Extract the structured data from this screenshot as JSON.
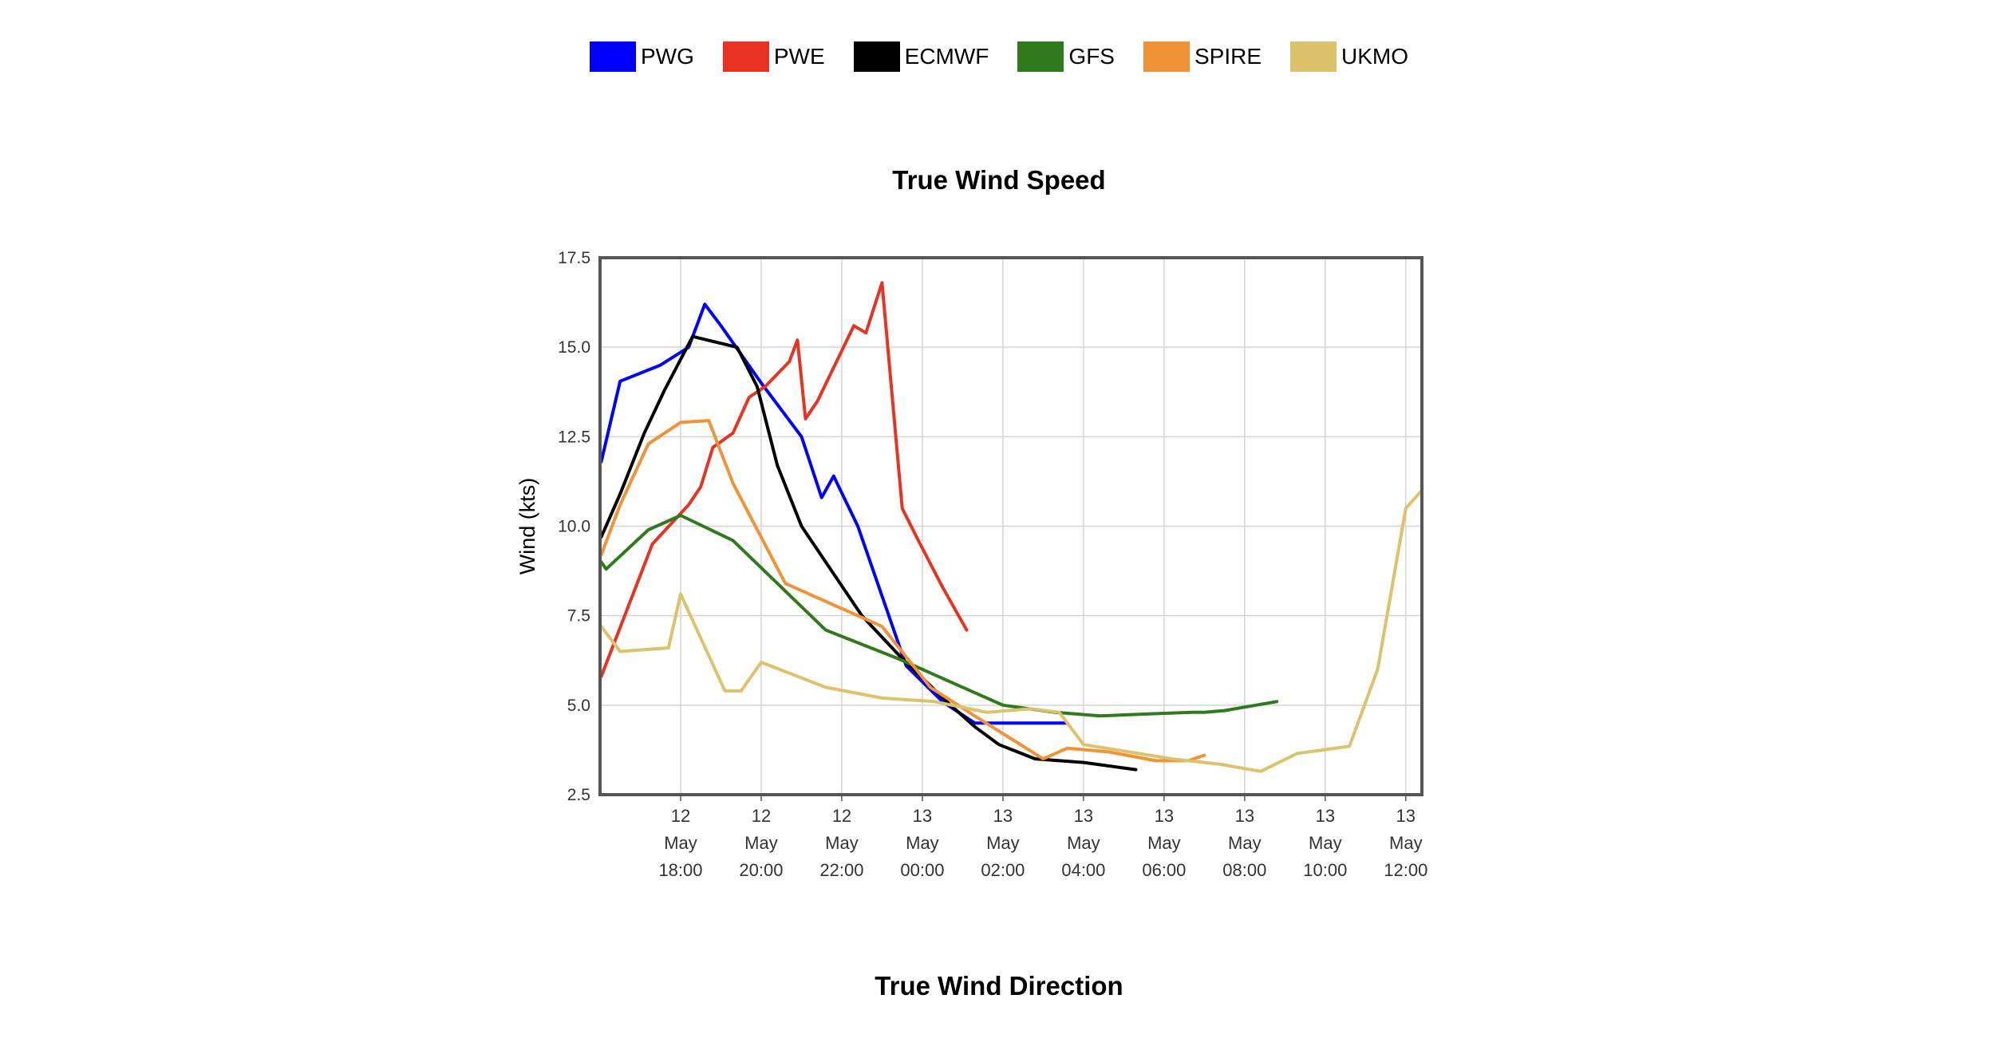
{
  "legend": [
    {
      "label": "PWG",
      "color": "#0000ff"
    },
    {
      "label": "PWE",
      "color": "#e83323"
    },
    {
      "label": "ECMWF",
      "color": "#000000"
    },
    {
      "label": "GFS",
      "color": "#2e7a1c"
    },
    {
      "label": "SPIRE",
      "color": "#f09336"
    },
    {
      "label": "UKMO",
      "color": "#dcc26a"
    }
  ],
  "titles": {
    "speed": "True Wind Speed",
    "direction": "True Wind Direction"
  },
  "chart_data": {
    "type": "line",
    "title": "True Wind Speed",
    "xlabel": "",
    "ylabel": "Wind (kts)",
    "ylim": [
      2.5,
      17.5
    ],
    "xlim_hours": [
      16.0,
      36.4
    ],
    "yticks": [
      "17.5",
      "15.0",
      "12.5",
      "10.0",
      "7.5",
      "5.0",
      "2.5"
    ],
    "xticks": [
      {
        "hour": 18,
        "lines": [
          "12",
          "May",
          "18:00"
        ]
      },
      {
        "hour": 20,
        "lines": [
          "12",
          "May",
          "20:00"
        ]
      },
      {
        "hour": 22,
        "lines": [
          "12",
          "May",
          "22:00"
        ]
      },
      {
        "hour": 24,
        "lines": [
          "13",
          "May",
          "00:00"
        ]
      },
      {
        "hour": 26,
        "lines": [
          "13",
          "May",
          "02:00"
        ]
      },
      {
        "hour": 28,
        "lines": [
          "13",
          "May",
          "04:00"
        ]
      },
      {
        "hour": 30,
        "lines": [
          "13",
          "May",
          "06:00"
        ]
      },
      {
        "hour": 32,
        "lines": [
          "13",
          "May",
          "08:00"
        ]
      },
      {
        "hour": 34,
        "lines": [
          "13",
          "May",
          "10:00"
        ]
      },
      {
        "hour": 36,
        "lines": [
          "13",
          "May",
          "12:00"
        ]
      }
    ],
    "grid": true,
    "legend_position": "top",
    "series": [
      {
        "name": "PWG",
        "color": "#0000ff",
        "points": [
          [
            16.03,
            11.8
          ],
          [
            16.5,
            14.05
          ],
          [
            17.5,
            14.5
          ],
          [
            18.2,
            15.0
          ],
          [
            18.6,
            16.2
          ],
          [
            19.0,
            15.6
          ],
          [
            20.0,
            14.0
          ],
          [
            21.0,
            12.5
          ],
          [
            21.5,
            10.8
          ],
          [
            21.8,
            11.4
          ],
          [
            22.4,
            10.0
          ],
          [
            23.6,
            6.1
          ],
          [
            24.5,
            5.1
          ],
          [
            25.3,
            4.5
          ],
          [
            27.0,
            4.5
          ],
          [
            27.6,
            4.5
          ]
        ]
      },
      {
        "name": "PWE",
        "color": "#e83323",
        "points": [
          [
            16.03,
            5.8
          ],
          [
            16.2,
            6.3
          ],
          [
            17.3,
            9.5
          ],
          [
            18.2,
            10.6
          ],
          [
            18.5,
            11.1
          ],
          [
            18.8,
            12.2
          ],
          [
            19.3,
            12.6
          ],
          [
            19.7,
            13.6
          ],
          [
            20.1,
            13.9
          ],
          [
            20.7,
            14.6
          ],
          [
            20.9,
            15.2
          ],
          [
            21.1,
            13.0
          ],
          [
            21.4,
            13.5
          ],
          [
            22.3,
            15.6
          ],
          [
            22.6,
            15.4
          ],
          [
            23.0,
            16.8
          ],
          [
            23.5,
            10.5
          ],
          [
            23.9,
            9.6
          ],
          [
            24.5,
            8.3
          ],
          [
            25.1,
            7.1
          ]
        ]
      },
      {
        "name": "ECMWF",
        "color": "#000000",
        "points": [
          [
            16.03,
            9.7
          ],
          [
            16.5,
            10.9
          ],
          [
            17.1,
            12.6
          ],
          [
            17.6,
            13.8
          ],
          [
            18.3,
            15.3
          ],
          [
            19.4,
            15.0
          ],
          [
            19.9,
            13.9
          ],
          [
            20.4,
            11.7
          ],
          [
            21.0,
            10.0
          ],
          [
            22.5,
            7.5
          ],
          [
            23.5,
            6.3
          ],
          [
            24.7,
            5.0
          ],
          [
            25.3,
            4.4
          ],
          [
            25.9,
            3.9
          ],
          [
            26.8,
            3.5
          ],
          [
            28.0,
            3.4
          ],
          [
            29.3,
            3.2
          ]
        ]
      },
      {
        "name": "GFS",
        "color": "#2e7a1c",
        "points": [
          [
            16.03,
            9.0
          ],
          [
            16.15,
            8.8
          ],
          [
            17.2,
            9.9
          ],
          [
            18.0,
            10.3
          ],
          [
            19.3,
            9.6
          ],
          [
            21.6,
            7.1
          ],
          [
            23.4,
            6.3
          ],
          [
            25.0,
            5.5
          ],
          [
            26.0,
            5.0
          ],
          [
            27.3,
            4.8
          ],
          [
            28.4,
            4.7
          ],
          [
            29.5,
            4.75
          ],
          [
            30.7,
            4.8
          ],
          [
            31.0,
            4.8
          ],
          [
            31.5,
            4.85
          ],
          [
            32.8,
            5.1
          ]
        ]
      },
      {
        "name": "SPIRE",
        "color": "#f09336",
        "points": [
          [
            16.03,
            9.2
          ],
          [
            16.5,
            10.6
          ],
          [
            17.2,
            12.3
          ],
          [
            18.0,
            12.9
          ],
          [
            18.7,
            12.95
          ],
          [
            19.3,
            11.2
          ],
          [
            20.6,
            8.4
          ],
          [
            23.0,
            7.2
          ],
          [
            24.2,
            5.5
          ],
          [
            25.3,
            4.7
          ],
          [
            27.0,
            3.5
          ],
          [
            27.6,
            3.8
          ],
          [
            28.6,
            3.7
          ],
          [
            29.8,
            3.45
          ],
          [
            30.6,
            3.45
          ],
          [
            31.0,
            3.6
          ]
        ]
      },
      {
        "name": "UKMO",
        "color": "#dcc26a",
        "points": [
          [
            16.03,
            7.2
          ],
          [
            16.5,
            6.5
          ],
          [
            17.7,
            6.6
          ],
          [
            18.0,
            8.1
          ],
          [
            19.1,
            5.4
          ],
          [
            19.5,
            5.4
          ],
          [
            20.0,
            6.2
          ],
          [
            21.6,
            5.5
          ],
          [
            23.0,
            5.2
          ],
          [
            24.3,
            5.1
          ],
          [
            25.6,
            4.8
          ],
          [
            26.7,
            4.9
          ],
          [
            27.4,
            4.8
          ],
          [
            28.0,
            3.9
          ],
          [
            30.2,
            3.5
          ],
          [
            31.4,
            3.35
          ],
          [
            32.4,
            3.15
          ],
          [
            33.3,
            3.65
          ],
          [
            34.6,
            3.85
          ],
          [
            35.3,
            6.0
          ],
          [
            36.0,
            10.5
          ],
          [
            36.4,
            11.0
          ]
        ]
      }
    ]
  }
}
